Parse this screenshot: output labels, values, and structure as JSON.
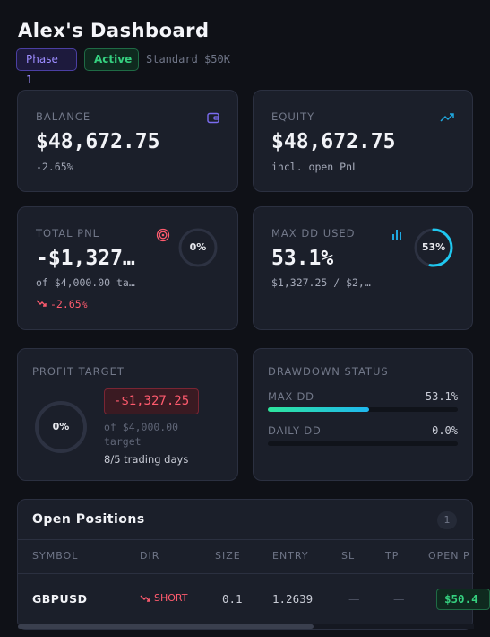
{
  "header": {
    "title": "Alex's Dashboard",
    "phase_label": "Phase 1",
    "status_label": "Active",
    "account_type": "Standard $50K"
  },
  "balance": {
    "label": "BALANCE",
    "value": "$48,672.75",
    "change": "-2.65%",
    "icon": "wallet-icon"
  },
  "equity": {
    "label": "EQUITY",
    "value": "$48,672.75",
    "note": "incl. open PnL",
    "icon": "trending-up-icon"
  },
  "total_pnl": {
    "label": "TOTAL PNL",
    "value": "-$1,327…",
    "target_note": "of $4,000.00 ta…",
    "change": "-2.65%",
    "ring_percent_label": "0%",
    "ring_fraction": 0,
    "icon": "target-icon"
  },
  "max_dd_used": {
    "label": "MAX DD USED",
    "value": "53.1%",
    "detail": "$1,327.25 / $2,…",
    "ring_percent_label": "53%",
    "ring_fraction": 0.531,
    "icon": "bar-chart-icon"
  },
  "profit_target": {
    "label": "PROFIT TARGET",
    "ring_percent_label": "0%",
    "ring_fraction": 0,
    "amount": "-$1,327.25",
    "of_line": "of $4,000.00",
    "target_word": "target",
    "trading_days": "8/5 trading days"
  },
  "drawdown_status": {
    "label": "DRAWDOWN STATUS",
    "max_dd": {
      "label": "MAX DD",
      "value": "53.1%",
      "fraction": 0.531
    },
    "daily_dd": {
      "label": "DAILY DD",
      "value": "0.0%",
      "fraction": 0
    }
  },
  "positions": {
    "title": "Open Positions",
    "count": "1",
    "columns": [
      "SYMBOL",
      "DIR",
      "SIZE",
      "ENTRY",
      "SL",
      "TP",
      "OPEN P"
    ],
    "rows": [
      {
        "symbol": "GBPUSD",
        "dir": "SHORT",
        "size": "0.1",
        "entry": "1.2639",
        "sl": "—",
        "tp": "—",
        "open_pnl": "$50.4"
      }
    ]
  },
  "colors": {
    "positive": "#35d07f",
    "negative": "#ff5b6e",
    "accent": "#9c8cff",
    "ring_active": "#1fc8f0"
  }
}
